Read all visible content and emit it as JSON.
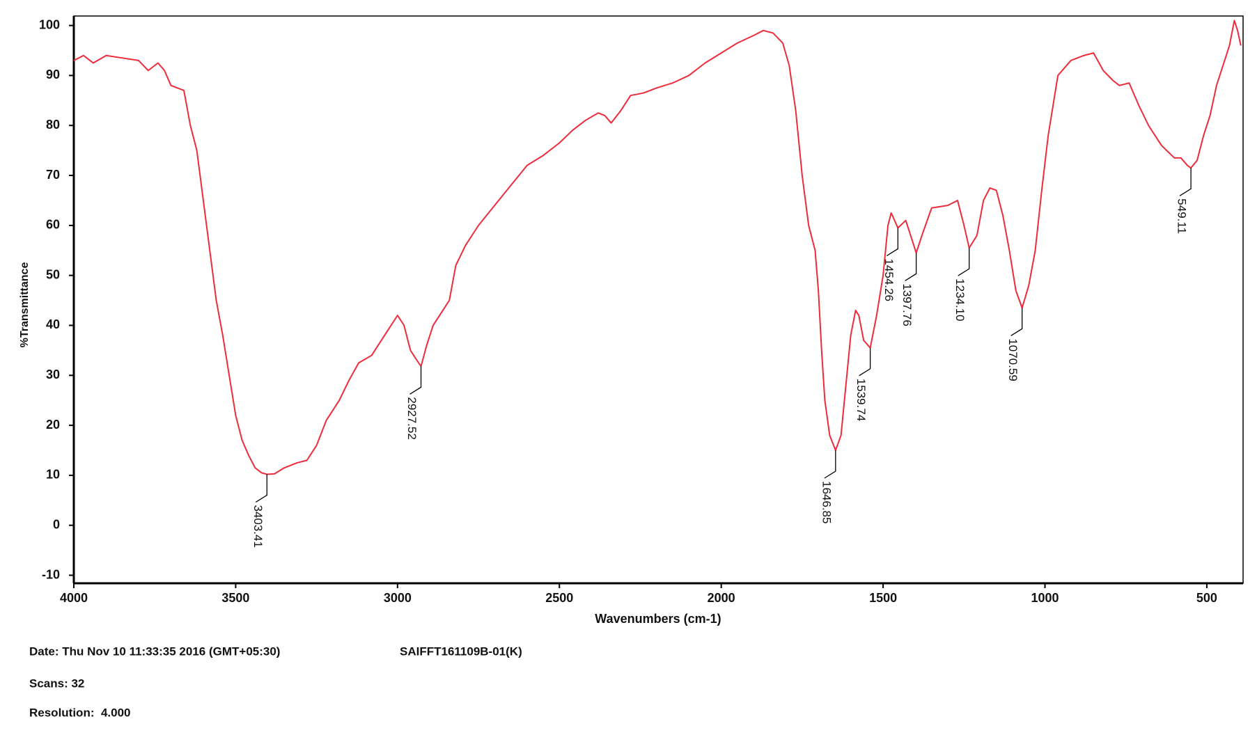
{
  "chart_data": {
    "type": "line",
    "x_label": "Wavenumbers (cm-1)",
    "y_label": "%Transmittance",
    "xlim": [
      4000,
      388
    ],
    "ylim": [
      -11.6,
      101.9
    ],
    "xticks": [
      4000,
      3500,
      3000,
      2500,
      2000,
      1500,
      1000,
      500
    ],
    "yticks": [
      -10,
      0,
      10,
      20,
      30,
      40,
      50,
      60,
      70,
      80,
      90,
      100
    ],
    "grid": false,
    "x": [
      4000,
      3970,
      3940,
      3900,
      3850,
      3800,
      3770,
      3740,
      3720,
      3700,
      3660,
      3640,
      3620,
      3600,
      3580,
      3560,
      3540,
      3520,
      3500,
      3480,
      3460,
      3440,
      3420,
      3403.41,
      3380,
      3350,
      3310,
      3280,
      3250,
      3220,
      3180,
      3150,
      3120,
      3080,
      3040,
      3000,
      2980,
      2960,
      2940,
      2927.52,
      2910,
      2890,
      2860,
      2840,
      2820,
      2790,
      2750,
      2700,
      2650,
      2600,
      2550,
      2500,
      2460,
      2420,
      2380,
      2360,
      2340,
      2310,
      2280,
      2240,
      2200,
      2150,
      2100,
      2050,
      2000,
      1950,
      1900,
      1870,
      1840,
      1810,
      1790,
      1770,
      1750,
      1730,
      1710,
      1700,
      1690,
      1680,
      1665,
      1646.85,
      1630,
      1615,
      1600,
      1585,
      1575,
      1560,
      1539.74,
      1520,
      1500,
      1485,
      1475,
      1454.26,
      1430,
      1410,
      1397.76,
      1380,
      1350,
      1300,
      1270,
      1250,
      1234.1,
      1210,
      1190,
      1170,
      1150,
      1130,
      1110,
      1090,
      1070.59,
      1050,
      1030,
      1010,
      990,
      960,
      920,
      880,
      850,
      820,
      790,
      770,
      740,
      710,
      680,
      640,
      600,
      580,
      560,
      549.11,
      530,
      510,
      490,
      470,
      450,
      430,
      415,
      405,
      395
    ],
    "series": [
      {
        "name": "spectrum",
        "color": "#ee2b3b",
        "values": [
          93,
          94,
          92.5,
          94,
          93.5,
          93,
          91,
          92.5,
          91,
          88,
          87,
          80,
          75,
          65,
          55,
          45,
          38,
          30,
          22,
          17,
          14,
          11.5,
          10.5,
          10.2,
          10.3,
          11.5,
          12.5,
          13,
          16,
          21,
          25,
          29,
          32.5,
          34,
          38,
          42,
          40,
          35,
          33,
          31.8,
          36,
          40,
          43,
          45,
          52,
          56,
          60,
          64,
          68,
          72,
          74,
          76.5,
          79,
          81,
          82.5,
          82,
          80.5,
          83,
          86,
          86.5,
          87.5,
          88.5,
          90,
          92.5,
          94.5,
          96.5,
          98,
          99,
          98.5,
          96.5,
          92,
          83,
          70,
          60,
          55,
          47,
          35,
          25,
          18,
          15,
          18,
          28,
          38,
          43,
          42,
          37,
          35.5,
          42,
          50,
          60,
          62.5,
          59.5,
          61,
          57,
          54.5,
          58,
          63.5,
          64,
          65,
          60,
          55.5,
          58,
          65,
          67.5,
          67,
          62,
          55,
          47,
          43.5,
          48,
          55,
          67,
          78,
          90,
          93,
          94,
          94.5,
          91,
          89,
          88,
          88.5,
          84,
          80,
          76,
          73.5,
          73.5,
          72,
          71.5,
          73,
          78,
          82,
          88,
          92,
          96,
          101,
          99,
          96
        ]
      }
    ],
    "annotations": [
      {
        "text": "3403.41",
        "x": 3403.41,
        "y": 10.2
      },
      {
        "text": "2927.52",
        "x": 2927.52,
        "y": 31.8
      },
      {
        "text": "1646.85",
        "x": 1646.85,
        "y": 15
      },
      {
        "text": "1539.74",
        "x": 1539.74,
        "y": 35.5
      },
      {
        "text": "1454.26",
        "x": 1454.26,
        "y": 59.5
      },
      {
        "text": "1397.76",
        "x": 1397.76,
        "y": 54.5
      },
      {
        "text": "1234.10",
        "x": 1234.1,
        "y": 55.5
      },
      {
        "text": "1070.59",
        "x": 1070.59,
        "y": 43.5
      },
      {
        "text": "549.11",
        "x": 549.11,
        "y": 71.5
      }
    ]
  },
  "footer": {
    "date": "Date: Thu Nov 10 11:33:35 2016 (GMT+05:30)",
    "id": "SAIFFT161109B-01(K)",
    "scans": "Scans: 32",
    "resolution": "Resolution:  4.000"
  }
}
